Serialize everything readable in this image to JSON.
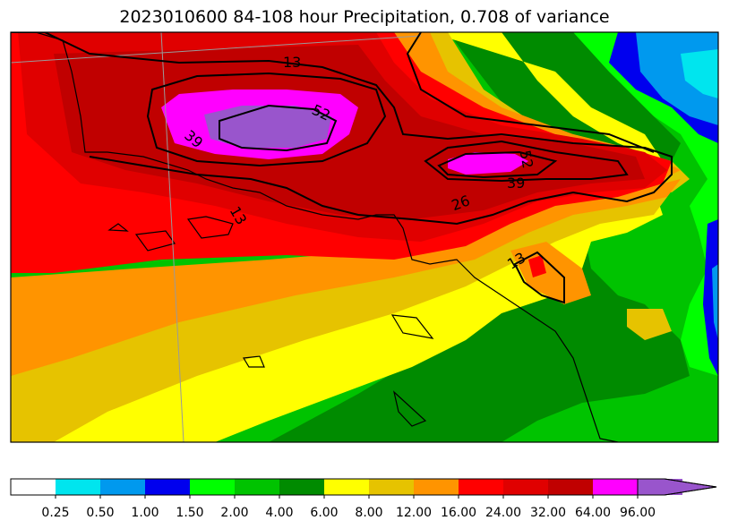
{
  "chart_data": {
    "type": "heatmap",
    "title": "2023010600 84-108 hour Precipitation, 0.708 of variance",
    "colorbar": {
      "orientation": "horizontal",
      "extend": "max",
      "tick_labels": [
        "0.25",
        "0.50",
        "1.00",
        "1.50",
        "2.00",
        "4.00",
        "6.00",
        "8.00",
        "12.00",
        "16.00",
        "24.00",
        "32.00",
        "64.00",
        "96.00"
      ],
      "levels": [
        0,
        0.25,
        0.5,
        1.0,
        1.5,
        2.0,
        4.0,
        6.0,
        8.0,
        12.0,
        16.0,
        24.0,
        32.0,
        64.0,
        96.0
      ],
      "colors": [
        "#ffffff",
        "#00e5ee",
        "#0099ee",
        "#0000ee",
        "#00ff00",
        "#00c300",
        "#008b00",
        "#ffff00",
        "#e6c300",
        "#ff9400",
        "#ff0000",
        "#e00000",
        "#c00000",
        "#ff00ff",
        "#9955cc"
      ]
    },
    "contour_labels": [
      "13",
      "52",
      "39",
      "26",
      "39",
      "52",
      "13",
      "13"
    ]
  }
}
